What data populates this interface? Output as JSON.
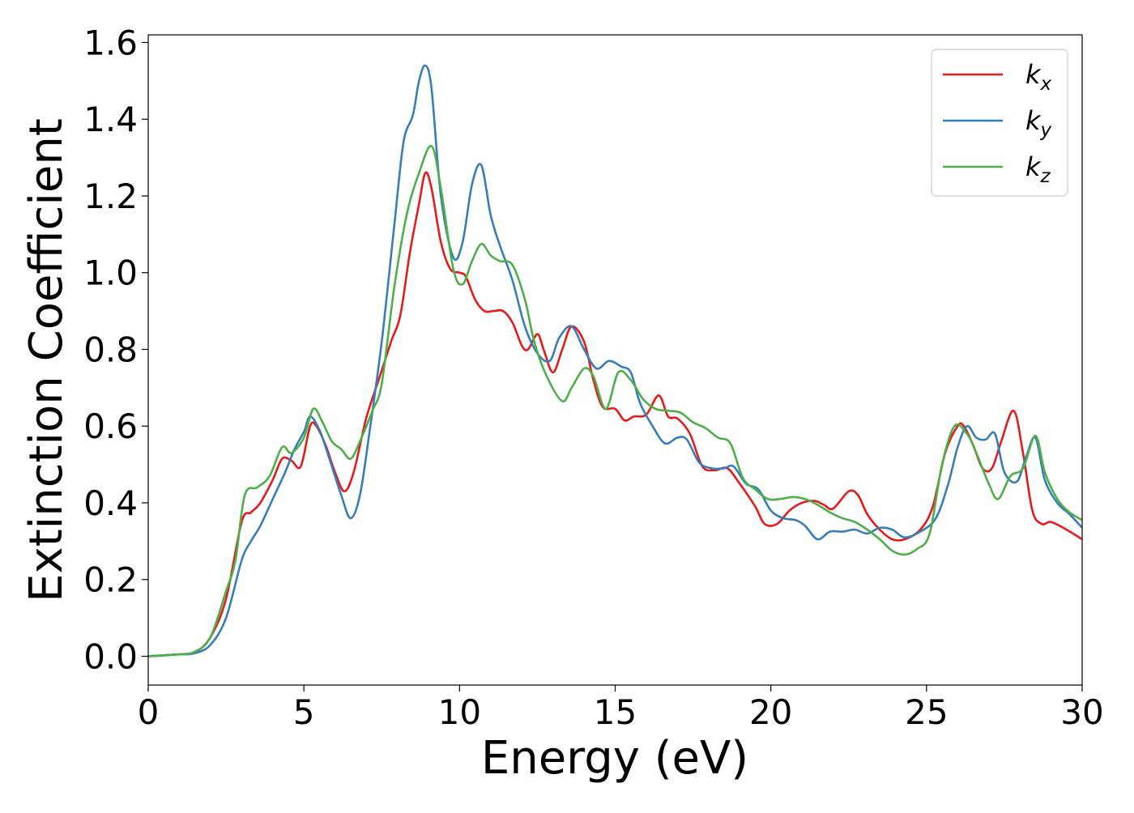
{
  "chart_data": {
    "type": "line",
    "xlabel": "Energy (eV)",
    "ylabel": "Extinction Coefficient",
    "xlim": [
      0,
      30
    ],
    "ylim": [
      -0.075,
      1.62
    ],
    "xticks": [
      0,
      5,
      10,
      15,
      20,
      25,
      30
    ],
    "xtick_labels": [
      "0",
      "5",
      "10",
      "15",
      "20",
      "25",
      "30"
    ],
    "yticks": [
      0.0,
      0.2,
      0.4,
      0.6,
      0.8,
      1.0,
      1.2,
      1.4,
      1.6
    ],
    "ytick_labels": [
      "0.0",
      "0.2",
      "0.4",
      "0.6",
      "0.8",
      "1.0",
      "1.2",
      "1.4",
      "1.6"
    ],
    "grid": false,
    "legend_position": "top-right",
    "series": [
      {
        "name": "k",
        "subscript": "x",
        "color": "#e41a1c",
        "points": [
          [
            0,
            0
          ],
          [
            1,
            0.005
          ],
          [
            1.5,
            0.01
          ],
          [
            2,
            0.05
          ],
          [
            2.5,
            0.15
          ],
          [
            3,
            0.35
          ],
          [
            3.3,
            0.375
          ],
          [
            3.6,
            0.4
          ],
          [
            4,
            0.46
          ],
          [
            4.3,
            0.515
          ],
          [
            4.6,
            0.51
          ],
          [
            4.9,
            0.495
          ],
          [
            5.2,
            0.6
          ],
          [
            5.4,
            0.6
          ],
          [
            5.7,
            0.55
          ],
          [
            6,
            0.48
          ],
          [
            6.3,
            0.43
          ],
          [
            6.6,
            0.48
          ],
          [
            7,
            0.62
          ],
          [
            7.4,
            0.72
          ],
          [
            7.8,
            0.82
          ],
          [
            8.1,
            0.89
          ],
          [
            8.4,
            1.05
          ],
          [
            8.7,
            1.18
          ],
          [
            8.9,
            1.26
          ],
          [
            9.1,
            1.22
          ],
          [
            9.4,
            1.08
          ],
          [
            9.7,
            1.01
          ],
          [
            10,
            1.0
          ],
          [
            10.2,
            0.99
          ],
          [
            10.5,
            0.93
          ],
          [
            10.8,
            0.9
          ],
          [
            11.1,
            0.9
          ],
          [
            11.4,
            0.9
          ],
          [
            11.7,
            0.87
          ],
          [
            12,
            0.81
          ],
          [
            12.2,
            0.8
          ],
          [
            12.5,
            0.84
          ],
          [
            12.7,
            0.8
          ],
          [
            13,
            0.74
          ],
          [
            13.3,
            0.8
          ],
          [
            13.6,
            0.86
          ],
          [
            14,
            0.82
          ],
          [
            14.3,
            0.72
          ],
          [
            14.6,
            0.65
          ],
          [
            15,
            0.645
          ],
          [
            15.3,
            0.615
          ],
          [
            15.6,
            0.625
          ],
          [
            16,
            0.63
          ],
          [
            16.4,
            0.68
          ],
          [
            16.7,
            0.625
          ],
          [
            17,
            0.62
          ],
          [
            17.4,
            0.58
          ],
          [
            17.8,
            0.495
          ],
          [
            18.2,
            0.485
          ],
          [
            18.6,
            0.49
          ],
          [
            19,
            0.45
          ],
          [
            19.5,
            0.39
          ],
          [
            19.8,
            0.345
          ],
          [
            20.2,
            0.345
          ],
          [
            20.6,
            0.38
          ],
          [
            21,
            0.4
          ],
          [
            21.4,
            0.405
          ],
          [
            21.7,
            0.395
          ],
          [
            22,
            0.385
          ],
          [
            22.5,
            0.43
          ],
          [
            22.8,
            0.42
          ],
          [
            23.1,
            0.37
          ],
          [
            23.5,
            0.33
          ],
          [
            23.9,
            0.305
          ],
          [
            24.3,
            0.305
          ],
          [
            24.8,
            0.33
          ],
          [
            25.2,
            0.39
          ],
          [
            25.6,
            0.53
          ],
          [
            26,
            0.6
          ],
          [
            26.2,
            0.6
          ],
          [
            26.5,
            0.55
          ],
          [
            26.8,
            0.49
          ],
          [
            27.1,
            0.49
          ],
          [
            27.4,
            0.56
          ],
          [
            27.8,
            0.64
          ],
          [
            28.1,
            0.53
          ],
          [
            28.4,
            0.38
          ],
          [
            28.7,
            0.345
          ],
          [
            29,
            0.35
          ],
          [
            29.5,
            0.33
          ],
          [
            30,
            0.305
          ]
        ]
      },
      {
        "name": "k",
        "subscript": "y",
        "color": "#377eb8",
        "points": [
          [
            0,
            0
          ],
          [
            1,
            0.005
          ],
          [
            1.5,
            0.008
          ],
          [
            2,
            0.03
          ],
          [
            2.5,
            0.1
          ],
          [
            3,
            0.25
          ],
          [
            3.3,
            0.3
          ],
          [
            3.6,
            0.34
          ],
          [
            4,
            0.41
          ],
          [
            4.4,
            0.48
          ],
          [
            4.7,
            0.54
          ],
          [
            5,
            0.585
          ],
          [
            5.2,
            0.625
          ],
          [
            5.5,
            0.59
          ],
          [
            5.8,
            0.52
          ],
          [
            6.2,
            0.42
          ],
          [
            6.5,
            0.36
          ],
          [
            6.8,
            0.42
          ],
          [
            7.1,
            0.58
          ],
          [
            7.5,
            0.82
          ],
          [
            7.9,
            1.12
          ],
          [
            8.2,
            1.34
          ],
          [
            8.5,
            1.41
          ],
          [
            8.7,
            1.5
          ],
          [
            8.9,
            1.54
          ],
          [
            9.1,
            1.48
          ],
          [
            9.4,
            1.2
          ],
          [
            9.8,
            1.04
          ],
          [
            10.1,
            1.08
          ],
          [
            10.4,
            1.23
          ],
          [
            10.7,
            1.28
          ],
          [
            11,
            1.15
          ],
          [
            11.3,
            1.07
          ],
          [
            11.7,
            0.98
          ],
          [
            12.1,
            0.86
          ],
          [
            12.5,
            0.79
          ],
          [
            12.9,
            0.77
          ],
          [
            13.2,
            0.83
          ],
          [
            13.6,
            0.86
          ],
          [
            14,
            0.8
          ],
          [
            14.4,
            0.75
          ],
          [
            14.8,
            0.77
          ],
          [
            15.2,
            0.755
          ],
          [
            15.5,
            0.74
          ],
          [
            15.8,
            0.66
          ],
          [
            16.2,
            0.6
          ],
          [
            16.6,
            0.555
          ],
          [
            17,
            0.57
          ],
          [
            17.3,
            0.565
          ],
          [
            17.7,
            0.505
          ],
          [
            18.1,
            0.49
          ],
          [
            18.5,
            0.49
          ],
          [
            18.8,
            0.495
          ],
          [
            19.2,
            0.45
          ],
          [
            19.6,
            0.435
          ],
          [
            20,
            0.38
          ],
          [
            20.4,
            0.36
          ],
          [
            20.8,
            0.355
          ],
          [
            21.1,
            0.34
          ],
          [
            21.5,
            0.305
          ],
          [
            21.9,
            0.325
          ],
          [
            22.3,
            0.325
          ],
          [
            22.7,
            0.33
          ],
          [
            23.1,
            0.32
          ],
          [
            23.5,
            0.335
          ],
          [
            23.9,
            0.33
          ],
          [
            24.3,
            0.31
          ],
          [
            24.8,
            0.325
          ],
          [
            25.3,
            0.36
          ],
          [
            25.7,
            0.45
          ],
          [
            26,
            0.545
          ],
          [
            26.3,
            0.6
          ],
          [
            26.6,
            0.57
          ],
          [
            26.9,
            0.565
          ],
          [
            27.2,
            0.58
          ],
          [
            27.5,
            0.48
          ],
          [
            27.9,
            0.455
          ],
          [
            28.2,
            0.52
          ],
          [
            28.5,
            0.57
          ],
          [
            28.8,
            0.46
          ],
          [
            29.2,
            0.4
          ],
          [
            29.6,
            0.37
          ],
          [
            30,
            0.335
          ]
        ]
      },
      {
        "name": "k",
        "subscript": "z",
        "color": "#4daf4a",
        "points": [
          [
            0,
            0
          ],
          [
            1,
            0.005
          ],
          [
            1.5,
            0.012
          ],
          [
            2,
            0.05
          ],
          [
            2.5,
            0.17
          ],
          [
            2.8,
            0.25
          ],
          [
            3.1,
            0.42
          ],
          [
            3.5,
            0.44
          ],
          [
            3.9,
            0.47
          ],
          [
            4.3,
            0.545
          ],
          [
            4.6,
            0.53
          ],
          [
            5,
            0.57
          ],
          [
            5.3,
            0.645
          ],
          [
            5.6,
            0.61
          ],
          [
            5.9,
            0.56
          ],
          [
            6.2,
            0.54
          ],
          [
            6.5,
            0.515
          ],
          [
            6.8,
            0.56
          ],
          [
            7.2,
            0.64
          ],
          [
            7.5,
            0.71
          ],
          [
            7.9,
            0.96
          ],
          [
            8.3,
            1.15
          ],
          [
            8.7,
            1.26
          ],
          [
            9.1,
            1.33
          ],
          [
            9.4,
            1.22
          ],
          [
            9.8,
            1.01
          ],
          [
            10.1,
            0.97
          ],
          [
            10.4,
            1.03
          ],
          [
            10.7,
            1.075
          ],
          [
            11,
            1.045
          ],
          [
            11.3,
            1.03
          ],
          [
            11.7,
            1.02
          ],
          [
            12.1,
            0.93
          ],
          [
            12.4,
            0.82
          ],
          [
            12.8,
            0.73
          ],
          [
            13.3,
            0.665
          ],
          [
            13.6,
            0.7
          ],
          [
            14,
            0.75
          ],
          [
            14.3,
            0.73
          ],
          [
            14.7,
            0.645
          ],
          [
            15.1,
            0.74
          ],
          [
            15.5,
            0.72
          ],
          [
            15.9,
            0.67
          ],
          [
            16.3,
            0.645
          ],
          [
            16.7,
            0.64
          ],
          [
            17.1,
            0.635
          ],
          [
            17.5,
            0.61
          ],
          [
            17.9,
            0.595
          ],
          [
            18.3,
            0.57
          ],
          [
            18.7,
            0.555
          ],
          [
            19.1,
            0.465
          ],
          [
            19.5,
            0.435
          ],
          [
            19.9,
            0.41
          ],
          [
            20.3,
            0.41
          ],
          [
            20.7,
            0.415
          ],
          [
            21.1,
            0.41
          ],
          [
            21.5,
            0.395
          ],
          [
            21.9,
            0.375
          ],
          [
            22.3,
            0.36
          ],
          [
            22.7,
            0.35
          ],
          [
            23.1,
            0.33
          ],
          [
            23.5,
            0.305
          ],
          [
            23.9,
            0.275
          ],
          [
            24.3,
            0.265
          ],
          [
            24.7,
            0.28
          ],
          [
            25.1,
            0.32
          ],
          [
            25.5,
            0.5
          ],
          [
            25.9,
            0.6
          ],
          [
            26.3,
            0.58
          ],
          [
            26.6,
            0.53
          ],
          [
            27,
            0.45
          ],
          [
            27.3,
            0.41
          ],
          [
            27.7,
            0.47
          ],
          [
            28.1,
            0.49
          ],
          [
            28.5,
            0.575
          ],
          [
            28.8,
            0.48
          ],
          [
            29.2,
            0.41
          ],
          [
            29.6,
            0.375
          ],
          [
            30,
            0.355
          ]
        ]
      }
    ]
  }
}
